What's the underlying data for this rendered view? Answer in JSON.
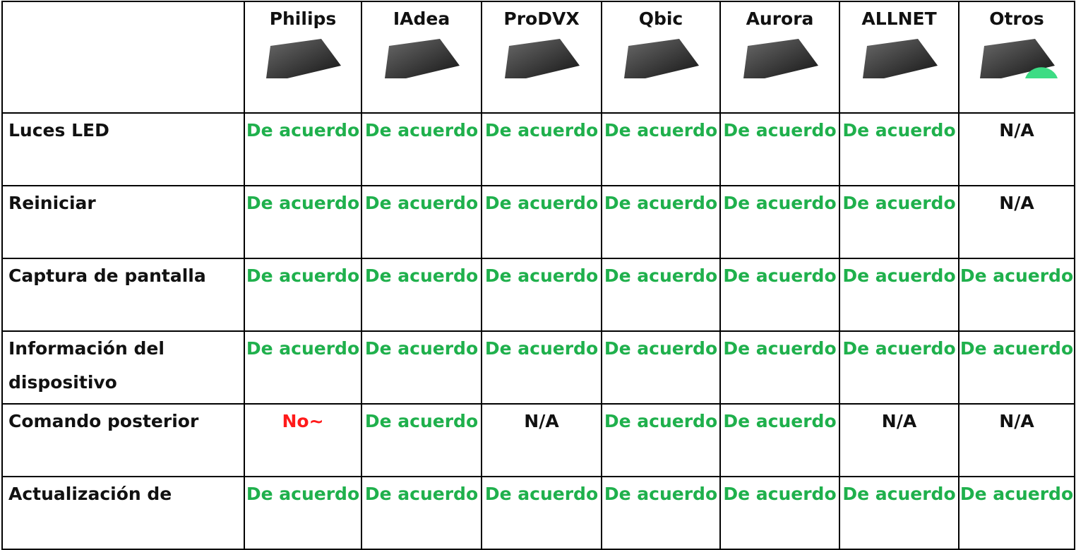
{
  "table": {
    "header": [
      "Philips",
      "IAdea",
      "ProDVX",
      "Qbic",
      "Aurora",
      "ALLNET",
      "Otros"
    ],
    "cell_colors": {
      "De acuerdo": "#1fb04c",
      "No~": "#ff1a1a",
      "N/A": "#111111"
    },
    "rows": [
      {
        "label": "Luces LED",
        "cells": [
          "De acuerdo",
          "De acuerdo",
          "De acuerdo",
          "De acuerdo",
          "De acuerdo",
          "De acuerdo",
          "N/A"
        ]
      },
      {
        "label": "Reiniciar",
        "cells": [
          "De acuerdo",
          "De acuerdo",
          "De acuerdo",
          "De acuerdo",
          "De acuerdo",
          "De acuerdo",
          "N/A"
        ]
      },
      {
        "label": "Captura de pantalla",
        "cells": [
          "De acuerdo",
          "De acuerdo",
          "De acuerdo",
          "De acuerdo",
          "De acuerdo",
          "De acuerdo",
          "De acuerdo"
        ]
      },
      {
        "label": "Información del dispositivo",
        "cells": [
          "De acuerdo",
          "De acuerdo",
          "De acuerdo",
          "De acuerdo",
          "De acuerdo",
          "De acuerdo",
          "De acuerdo"
        ]
      },
      {
        "label": "Comando posterior",
        "cells": [
          "No~",
          "De acuerdo",
          "N/A",
          "De acuerdo",
          "De acuerdo",
          "N/A",
          "N/A"
        ]
      },
      {
        "label": "Actualización de",
        "cells": [
          "De acuerdo",
          "De acuerdo",
          "De acuerdo",
          "De acuerdo",
          "De acuerdo",
          "De acuerdo",
          "De acuerdo"
        ]
      }
    ]
  }
}
